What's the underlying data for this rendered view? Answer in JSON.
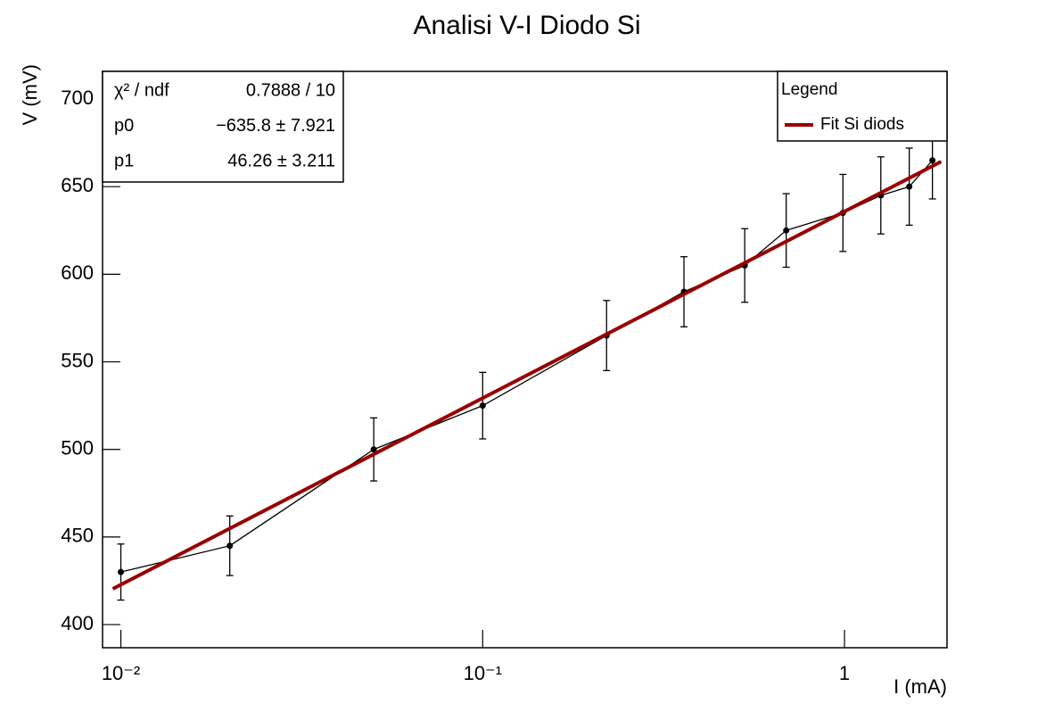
{
  "chart_data": {
    "type": "line",
    "title": "Analisi V-I Diodo Si",
    "x_label": "I (mA)",
    "y_label": "V (mV)",
    "x_log": true,
    "xlim": [
      0.0089,
      1.92
    ],
    "ylim": [
      386.8,
      715.8
    ],
    "xticks": [
      {
        "value": 0.01,
        "label": "10⁻²"
      },
      {
        "value": 0.1,
        "label": "10⁻¹"
      },
      1
    ],
    "yticks": [
      400,
      450,
      500,
      550,
      600,
      650,
      700
    ],
    "series": [
      {
        "color": "#000000",
        "x": [
          0.01,
          0.02,
          0.05,
          0.1,
          0.22,
          0.36,
          0.53,
          0.69,
          0.99,
          1.26,
          1.51,
          1.75
        ],
        "values": [
          430,
          445,
          500,
          525,
          565,
          590,
          605,
          625,
          635,
          645,
          650,
          665
        ],
        "errors": [
          16,
          17,
          18,
          19,
          20,
          20,
          21,
          21,
          22,
          22,
          22,
          22
        ]
      },
      {
        "name": "Fit Si diods",
        "color": "#990000",
        "x": [
          0.0095,
          1.85
        ],
        "values": [
          420.4,
          664.3
        ]
      }
    ],
    "legend_title": "Legend",
    "stats": [
      [
        "χ² / ndf",
        "0.7888 / 10"
      ],
      [
        "p0",
        "−635.8 ± 7.921"
      ],
      [
        "p1",
        "46.26 ± 3.211"
      ]
    ]
  }
}
